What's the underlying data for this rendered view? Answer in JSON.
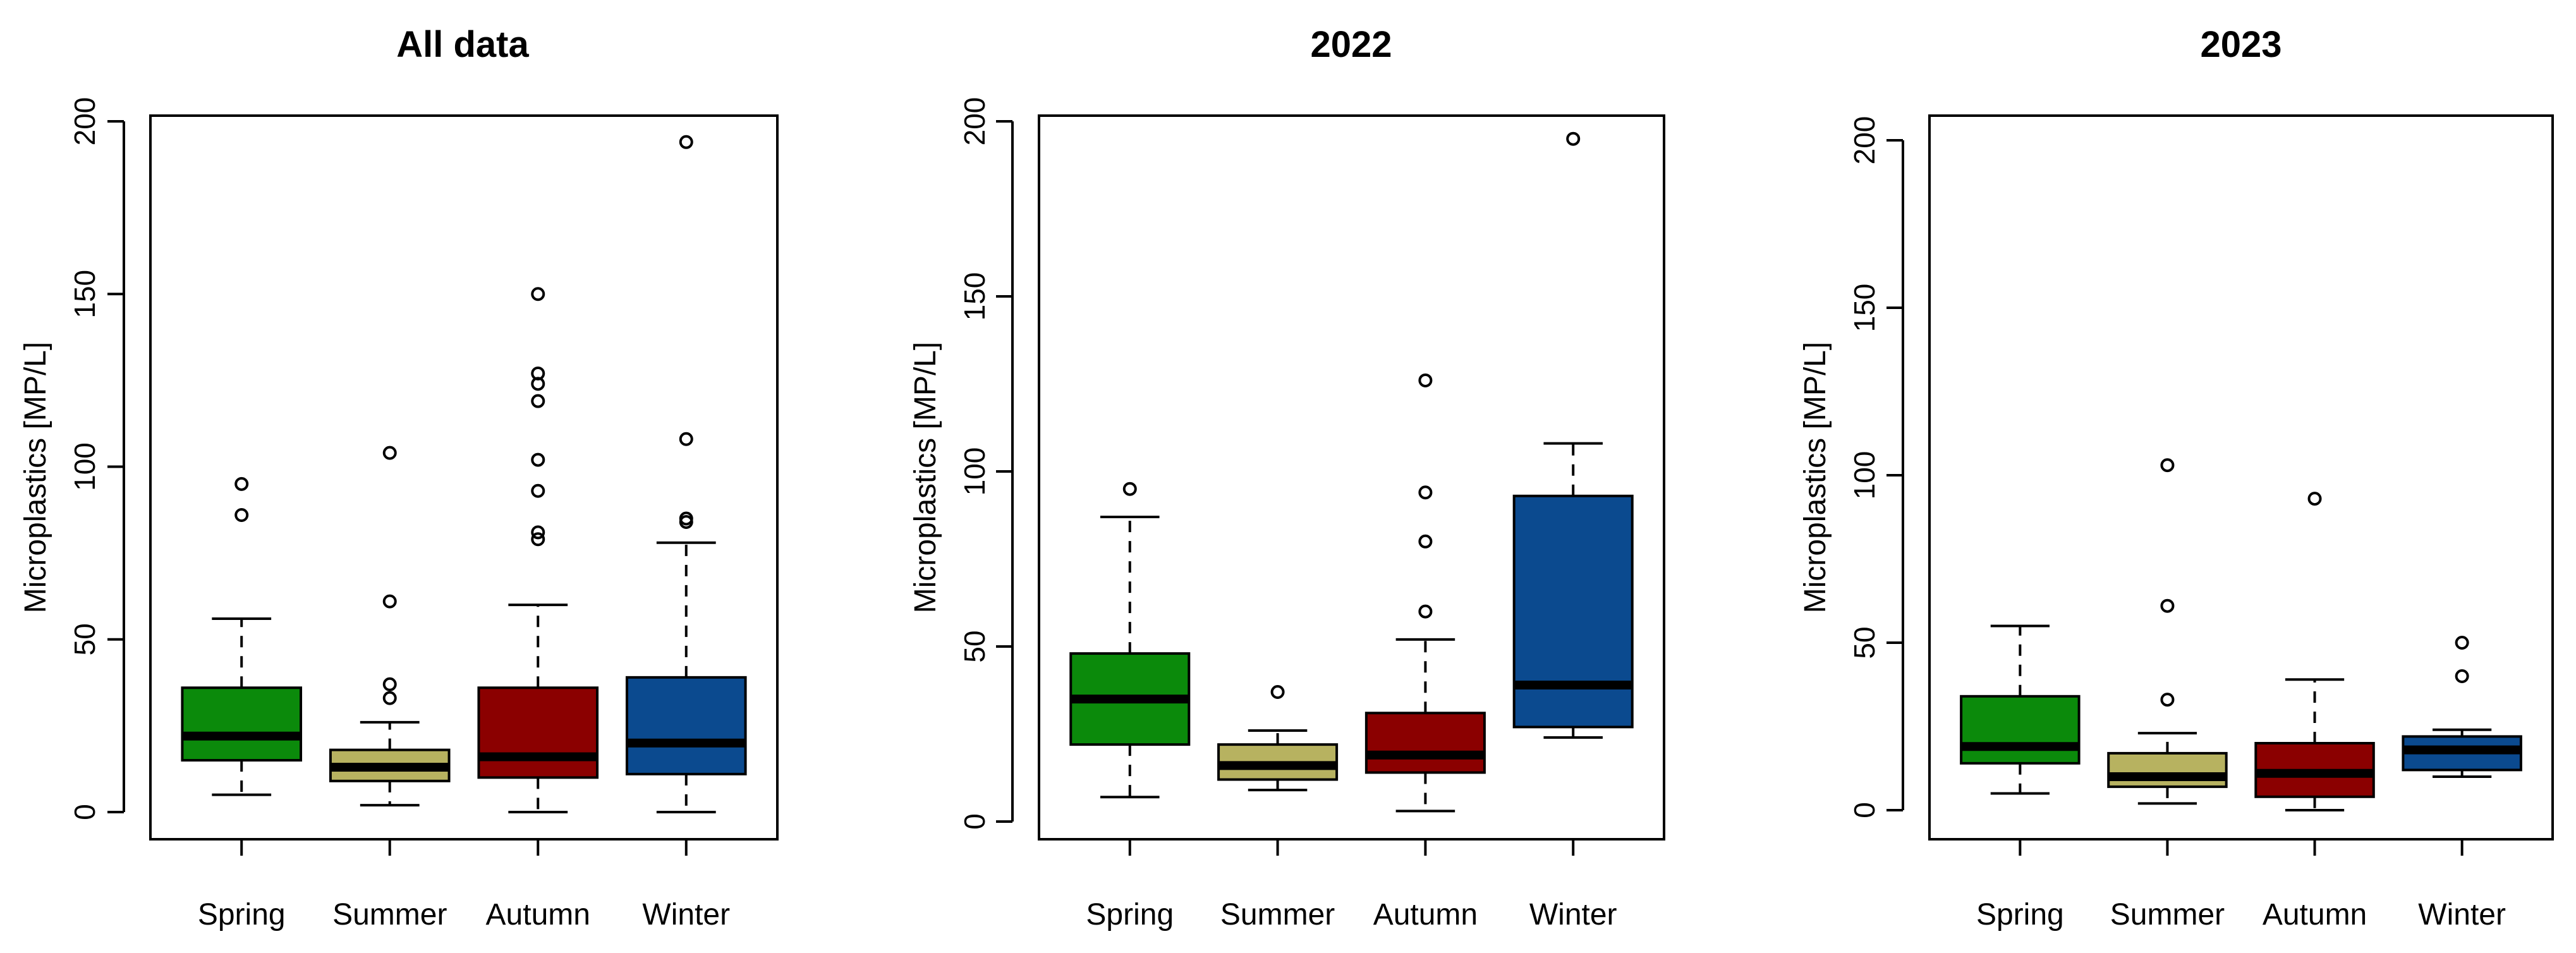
{
  "colors": {
    "Spring": "#0b8a0b",
    "Summer": "#b7b260",
    "Autumn": "#8b0000",
    "Winter": "#0b4a8f"
  },
  "chart_data": [
    {
      "type": "boxplot",
      "title": "All data",
      "ylabel": "Microplastics [MP/L]",
      "ylim": [
        0,
        200
      ],
      "yticks": [
        0,
        50,
        100,
        150,
        200
      ],
      "categories": [
        "Spring",
        "Summer",
        "Autumn",
        "Winter"
      ],
      "boxes": [
        {
          "name": "Spring",
          "whisker_low": 5,
          "q1": 15,
          "median": 22,
          "q3": 36,
          "whisker_high": 56,
          "outliers": [
            86,
            95
          ]
        },
        {
          "name": "Summer",
          "whisker_low": 2,
          "q1": 9,
          "median": 13,
          "q3": 18,
          "whisker_high": 26,
          "outliers": [
            33,
            37,
            61,
            104
          ]
        },
        {
          "name": "Autumn",
          "whisker_low": 0,
          "q1": 10,
          "median": 16,
          "q3": 36,
          "whisker_high": 60,
          "outliers": [
            79,
            81,
            93,
            102,
            119,
            124,
            127,
            150
          ]
        },
        {
          "name": "Winter",
          "whisker_low": 0,
          "q1": 11,
          "median": 20,
          "q3": 39,
          "whisker_high": 78,
          "outliers": [
            84,
            85,
            108,
            194
          ]
        }
      ]
    },
    {
      "type": "boxplot",
      "title": "2022",
      "ylabel": "Microplastics [MP/L]",
      "ylim": [
        0,
        200
      ],
      "yticks": [
        0,
        50,
        100,
        150,
        200
      ],
      "categories": [
        "Spring",
        "Summer",
        "Autumn",
        "Winter"
      ],
      "boxes": [
        {
          "name": "Spring",
          "whisker_low": 7,
          "q1": 22,
          "median": 35,
          "q3": 48,
          "whisker_high": 87,
          "outliers": [
            95
          ]
        },
        {
          "name": "Summer",
          "whisker_low": 9,
          "q1": 12,
          "median": 16,
          "q3": 22,
          "whisker_high": 26,
          "outliers": [
            37
          ]
        },
        {
          "name": "Autumn",
          "whisker_low": 3,
          "q1": 14,
          "median": 19,
          "q3": 31,
          "whisker_high": 52,
          "outliers": [
            60,
            80,
            94,
            126
          ]
        },
        {
          "name": "Winter",
          "whisker_low": 24,
          "q1": 27,
          "median": 39,
          "q3": 93,
          "whisker_high": 108,
          "outliers": [
            195
          ]
        }
      ]
    },
    {
      "type": "boxplot",
      "title": "2023",
      "ylabel": "Microplastics [MP/L]",
      "ylim": [
        0,
        200
      ],
      "yticks": [
        0,
        50,
        100,
        150,
        200
      ],
      "categories": [
        "Spring",
        "Summer",
        "Autumn",
        "Winter"
      ],
      "boxes": [
        {
          "name": "Spring",
          "whisker_low": 5,
          "q1": 14,
          "median": 19,
          "q3": 34,
          "whisker_high": 55,
          "outliers": []
        },
        {
          "name": "Summer",
          "whisker_low": 2,
          "q1": 7,
          "median": 10,
          "q3": 17,
          "whisker_high": 23,
          "outliers": [
            33,
            61,
            103
          ]
        },
        {
          "name": "Autumn",
          "whisker_low": 0,
          "q1": 4,
          "median": 11,
          "q3": 20,
          "whisker_high": 39,
          "outliers": [
            93
          ]
        },
        {
          "name": "Winter",
          "whisker_low": 10,
          "q1": 12,
          "median": 18,
          "q3": 22,
          "whisker_high": 24,
          "outliers": [
            40,
            50
          ]
        }
      ]
    }
  ]
}
